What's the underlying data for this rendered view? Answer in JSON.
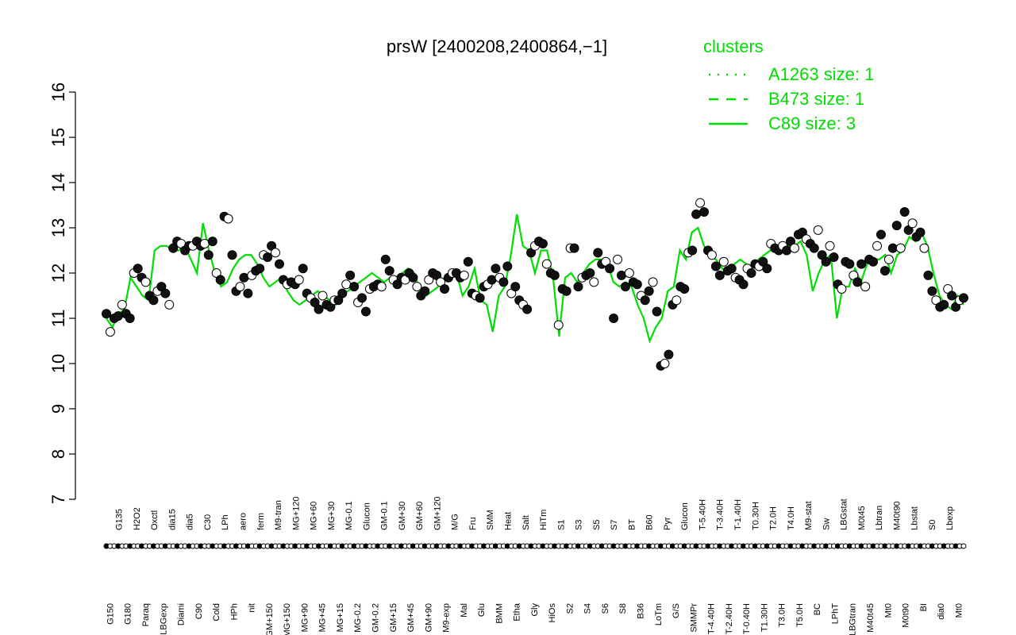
{
  "chart_data": {
    "type": "line",
    "title": "prsW [2400208,2400864,−1]",
    "xlabel": "",
    "ylabel": "",
    "ylim": [
      7,
      16
    ],
    "y_ticks": [
      "7",
      "8",
      "9",
      "10",
      "11",
      "12",
      "13",
      "14",
      "15",
      "16"
    ],
    "x_tick_labels": [
      "G150",
      "G135",
      "G180",
      "H2O2",
      "Paraq",
      "Oxctl",
      "LBGexp",
      "dia15",
      "Diami",
      "dia5",
      "C90",
      "C30",
      "Cold",
      "LPh",
      "HPh",
      "aero",
      "nit",
      "ferm",
      "GM+150",
      "M9-tran",
      "MG+150",
      "MG+120",
      "MG+90",
      "MG+60",
      "MG+45",
      "MG+30",
      "MG+15",
      "MG-0.1",
      "MG-0.2",
      "Glucon",
      "GM-0.2",
      "GM-0.1",
      "GM+15",
      "GM+30",
      "GM+45",
      "GM+60",
      "GM+90",
      "GM+120",
      "M9-exp",
      "M/G",
      "Mal",
      "Fru",
      "Glu",
      "SMM",
      "BMM",
      "Heat",
      "Etha",
      "Salt",
      "Gly",
      "HiTm",
      "HiOs",
      "S1",
      "S2",
      "S3",
      "S4",
      "S5",
      "S6",
      "S7",
      "S8",
      "BT",
      "B36",
      "B60",
      "LoTm",
      "Pyr",
      "G/S",
      "Glucon",
      "SMMPr",
      "T-5.40H",
      "T-4.40H",
      "T-3.40H",
      "T-2.40H",
      "T-1.40H",
      "T-0.40H",
      "T0.30H",
      "T1.30H",
      "T2.0H",
      "T3.0H",
      "T4.0H",
      "T5.0H",
      "M9-stat",
      "BC",
      "Sw",
      "LPhT",
      "LBGstat",
      "LBGtran",
      "M0t45",
      "M40t45",
      "Lbtran",
      "Mt0",
      "M40t90",
      "M0t90",
      "Lbstat",
      "BI",
      "S0",
      "dia0",
      "Lbexp",
      "Mt0"
    ],
    "legend": {
      "title": "clusters",
      "position": "top-right",
      "entries": [
        {
          "label": "A1263 size: 1",
          "style": "dotted"
        },
        {
          "label": "B473 size: 1",
          "style": "dashed"
        },
        {
          "label": "C89 size: 3",
          "style": "solid"
        }
      ]
    },
    "series": [
      {
        "name": "C89 size: 3",
        "style": "solid",
        "color": "#00dd00",
        "values": [
          11.0,
          10.8,
          11.1,
          11.2,
          11.9,
          11.7,
          11.5,
          11.4,
          12.5,
          12.6,
          12.6,
          12.5,
          12.5,
          12.6,
          12.3,
          12.0,
          13.1,
          12.5,
          12.0,
          11.7,
          11.8,
          12.1,
          12.3,
          12.4,
          12.4,
          12.2,
          11.9,
          11.7,
          11.8,
          11.9,
          11.6,
          11.4,
          11.3,
          11.4,
          11.5,
          11.6,
          11.5,
          11.4,
          11.3,
          11.5,
          11.6,
          11.7,
          11.8,
          11.9,
          12.0,
          11.9,
          11.8,
          11.9,
          11.9,
          12.0,
          12.1,
          12.0,
          11.6,
          11.5,
          11.6,
          11.7,
          11.9,
          12.0,
          12.0,
          11.5,
          11.7,
          12.1,
          11.4,
          11.3,
          10.7,
          11.5,
          11.7,
          12.4,
          13.3,
          12.6,
          12.5,
          12.0,
          12.5,
          12.5,
          11.9,
          10.6,
          11.9,
          12.0,
          11.8,
          12.0,
          12.2,
          12.3,
          12.3,
          12.2,
          11.8,
          11.7,
          11.8,
          11.7,
          11.3,
          11.0,
          10.5,
          10.8,
          11.0,
          11.6,
          11.7,
          12.5,
          12.3,
          12.9,
          13.0,
          12.6,
          12.4,
          12.3,
          12.1,
          12.0,
          12.2,
          12.3,
          12.2,
          12.1,
          12.3,
          12.4,
          12.5,
          12.5,
          12.6,
          12.6,
          12.6,
          12.7,
          12.4,
          11.6,
          12.0,
          12.3,
          12.4,
          11.0,
          11.7,
          11.7,
          12.1,
          11.8,
          12.2,
          12.3,
          12.3,
          12.4,
          12.0,
          12.4,
          12.5,
          12.8,
          12.7,
          12.9,
          12.6,
          12.0,
          11.5,
          11.3,
          11.2,
          11.5,
          11.3
        ]
      }
    ],
    "points": [
      [
        11.1,
        10.7,
        11.0,
        11.05,
        11.3,
        11.1,
        11.0,
        12.0,
        12.1,
        11.9,
        11.8,
        11.5,
        11.4,
        11.6,
        11.7,
        11.55,
        11.3,
        12.55,
        12.7,
        12.65,
        12.5,
        12.6,
        12.6,
        12.7,
        12.6,
        12.65,
        12.4,
        12.7,
        12.0,
        11.85,
        13.25,
        13.2,
        12.4,
        11.6,
        11.7,
        11.9,
        11.55,
        11.95,
        12.05,
        12.1,
        12.4,
        12.35,
        12.6,
        12.45,
        12.2,
        11.85,
        11.75,
        11.8,
        11.75,
        11.85,
        12.1,
        11.55,
        11.45,
        11.35,
        11.2,
        11.5,
        11.3,
        11.25,
        11.4,
        11.4,
        11.55,
        11.75,
        11.95,
        11.7,
        11.35,
        11.45,
        11.15,
        11.65,
        11.7,
        11.75,
        11.7,
        12.3,
        12.05,
        11.85,
        11.75,
        11.9,
        11.85,
        12.0,
        11.9,
        11.7,
        11.5,
        11.6,
        11.85,
        12.0,
        11.95,
        11.8,
        11.65,
        11.9,
        12.0,
        12.0,
        11.9,
        11.95,
        12.25,
        11.55,
        11.5,
        11.45,
        11.7,
        11.75,
        11.85,
        12.1,
        11.9,
        11.8,
        12.15,
        11.55,
        11.7,
        11.4,
        11.3,
        11.2,
        12.45,
        12.6,
        12.7,
        12.65,
        12.2,
        12.0,
        11.95,
        10.85,
        11.65,
        11.6,
        12.55,
        12.55,
        11.7,
        11.9,
        11.95,
        12.0,
        11.8,
        12.45,
        12.2,
        12.25,
        12.1,
        11.0,
        12.3,
        11.95,
        11.7,
        12.0,
        11.8,
        11.75,
        11.5,
        11.4,
        11.6,
        11.8,
        11.15,
        9.95,
        10.0,
        10.2,
        11.3,
        11.4,
        11.7,
        11.65,
        12.45,
        12.5,
        13.3,
        13.55,
        13.35,
        12.5,
        12.4,
        12.15,
        11.95,
        12.25,
        12.05,
        12.1,
        11.9,
        11.85,
        11.75,
        12.1,
        12.0,
        12.2,
        12.15,
        12.25,
        12.1,
        12.65,
        12.55,
        12.5,
        12.6,
        12.5,
        12.7,
        12.55,
        12.85,
        12.9,
        12.75,
        12.65,
        12.55,
        12.95,
        12.4,
        12.25,
        12.6,
        12.35,
        11.75,
        11.65,
        12.25,
        12.2,
        11.95,
        11.8,
        12.2,
        11.7,
        12.3,
        12.25,
        12.6,
        12.85,
        12.05,
        12.3,
        12.55,
        13.05,
        12.55,
        13.35,
        12.95,
        13.1,
        12.8,
        12.9,
        12.55,
        11.95,
        11.6,
        11.4,
        11.25,
        11.3,
        11.65,
        11.5,
        11.25,
        11.4,
        11.45
      ]
    ]
  }
}
